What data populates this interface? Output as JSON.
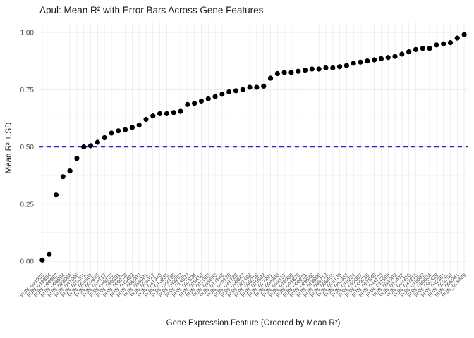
{
  "page": {
    "background": "#ffffff"
  },
  "chart": {
    "title": "Apul: Mean R² with Error Bars Across Gene Features"
  },
  "chart_data": {
    "type": "scatter",
    "title": "Apul: Mean R² with Error Bars Across Gene Features",
    "xlabel": "Gene Expression Feature (Ordered by Mean R²)",
    "ylabel": "Mean R² ± SD",
    "ylim": [
      0,
      1
    ],
    "y_ticks": [
      0,
      0.25,
      0.5,
      0.75,
      1
    ],
    "y_tick_labels": [
      "0.00",
      "0.25",
      "0.50",
      "0.75",
      "1.00"
    ],
    "grid": true,
    "legend": "none",
    "point_color": "#000000",
    "grid_major_color": "#e8e8e8",
    "grid_minor_color": "#f3f3f3",
    "tick_label_color": "#4d4d4d",
    "reference_line": {
      "y": 0.5,
      "color": "#2424db",
      "style": "dashed"
    },
    "categories": [
      "FUN_031938",
      "FUN_013394",
      "FUN_038967",
      "FUN_003894",
      "FUN_023064",
      "FUN_041066",
      "FUN_019051",
      "FUN_006507",
      "FUN_009845",
      "FUN_004717",
      "FUN_043133",
      "FUN_036391",
      "FUN_009128",
      "FUN_043402",
      "FUN_008903",
      "FUN_036081",
      "FUN_026017",
      "FUN_031940",
      "FUN_010235",
      "FUN_022195",
      "FUN_043252",
      "FUN_014637",
      "FUN_037834",
      "FUN_015410",
      "FUN_012083",
      "FUN_035693",
      "FUN_017542",
      "FUN_024170",
      "FUN_031729",
      "FUN_005847",
      "FUN_021468",
      "FUN_038216",
      "FUN_010582",
      "FUN_027391",
      "FUN_004380",
      "FUN_033157",
      "FUN_018960",
      "FUN_041875",
      "FUN_006231",
      "FUN_029548",
      "FUN_013806",
      "FUN_036712",
      "FUN_008455",
      "FUN_025139",
      "FUN_040968",
      "FUN_016284",
      "FUN_032057",
      "FUN_009716",
      "FUN_027840",
      "FUN_044123",
      "FUN_011569",
      "FUN_034902",
      "FUN_019478",
      "FUN_002356",
      "FUN_037215",
      "FUN_015093",
      "FUN_030684",
      "FUN_007429",
      "FUN_042361",
      "FUN_023750",
      "FUN_008941",
      "FUN_026489"
    ],
    "values": [
      0.005,
      0.03,
      0.29,
      0.37,
      0.395,
      0.45,
      0.5,
      0.505,
      0.52,
      0.54,
      0.56,
      0.57,
      0.575,
      0.585,
      0.595,
      0.62,
      0.635,
      0.645,
      0.645,
      0.65,
      0.655,
      0.685,
      0.69,
      0.7,
      0.71,
      0.72,
      0.73,
      0.74,
      0.745,
      0.75,
      0.76,
      0.76,
      0.765,
      0.8,
      0.82,
      0.825,
      0.825,
      0.83,
      0.835,
      0.84,
      0.84,
      0.845,
      0.845,
      0.85,
      0.855,
      0.865,
      0.87,
      0.875,
      0.88,
      0.885,
      0.89,
      0.895,
      0.905,
      0.915,
      0.925,
      0.93,
      0.93,
      0.945,
      0.95,
      0.955,
      0.975,
      0.99
    ]
  }
}
